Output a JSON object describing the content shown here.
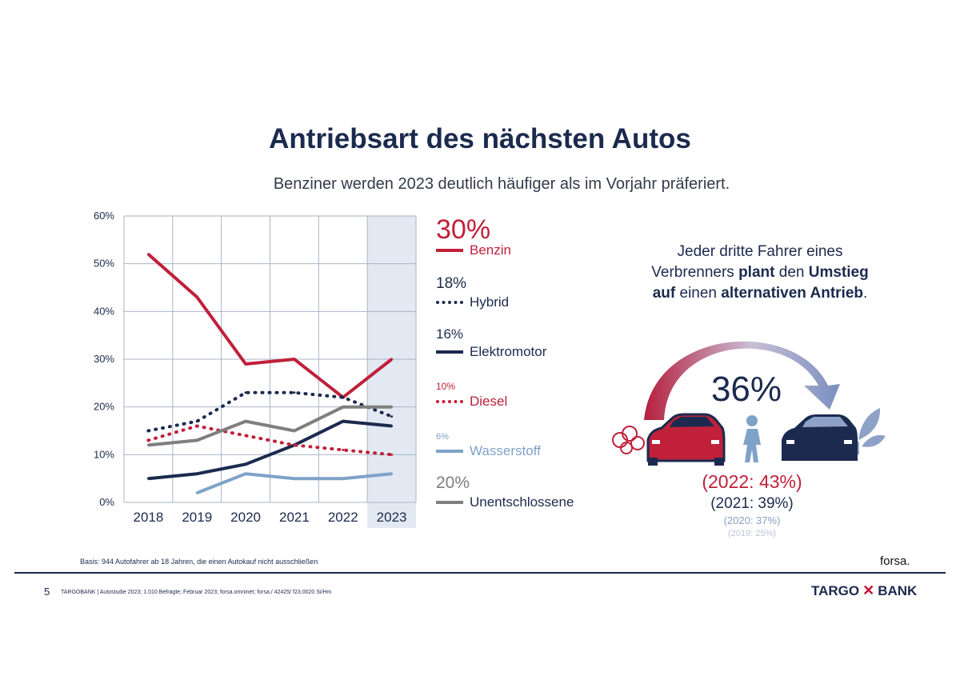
{
  "title": "Antriebsart des nächsten Autos",
  "subtitle": "Benziner werden 2023 deutlich häufiger als im Vorjahr präferiert.",
  "colors": {
    "navy": "#1b2a4e",
    "red": "#c0203a",
    "gray": "#7f7f7f",
    "lightblue": "#7fa2c8",
    "highlight": "#e3e9f2"
  },
  "chart_data": {
    "type": "line",
    "title": "",
    "xlabel": "",
    "ylabel": "",
    "categories": [
      "2018",
      "2019",
      "2020",
      "2021",
      "2022",
      "2023"
    ],
    "yticks": [
      "0%",
      "10%",
      "20%",
      "30%",
      "40%",
      "50%",
      "60%"
    ],
    "ylim": [
      0,
      60
    ],
    "grid": true,
    "highlight_category": "2023",
    "series": [
      {
        "name": "Benzin",
        "style": "solid",
        "color": "#c0203a",
        "values": [
          52,
          43,
          29,
          30,
          22,
          30
        ]
      },
      {
        "name": "Hybrid",
        "style": "dotted",
        "color": "#1b2a4e",
        "values": [
          15,
          17,
          23,
          23,
          22,
          18
        ]
      },
      {
        "name": "Elektromotor",
        "style": "solid",
        "color": "#1b2a4e",
        "values": [
          5,
          6,
          8,
          12,
          17,
          16
        ]
      },
      {
        "name": "Diesel",
        "style": "dotted",
        "color": "#c0203a",
        "values": [
          13,
          16,
          14,
          12,
          11,
          10
        ]
      },
      {
        "name": "Wasserstoff",
        "style": "solid",
        "color": "#7fa2c8",
        "values": [
          null,
          2,
          6,
          5,
          5,
          6
        ]
      },
      {
        "name": "Unentschlossene",
        "style": "solid",
        "color": "#7f7f7f",
        "values": [
          12,
          13,
          17,
          15,
          20,
          20
        ]
      }
    ]
  },
  "legend": [
    {
      "pct": "30%",
      "name": "Benzin"
    },
    {
      "pct": "18%",
      "name": "Hybrid"
    },
    {
      "pct": "16%",
      "name": "Elektromotor"
    },
    {
      "pct": "10%",
      "name": "Diesel"
    },
    {
      "pct": "6%",
      "name": "Wasserstoff"
    },
    {
      "pct": "20%",
      "name": "Unentschlossene"
    }
  ],
  "note": {
    "line1": "Jeder dritte Fahrer eines",
    "line2_a": "Verbrenners ",
    "line2_b": "plant",
    "line2_c": " den ",
    "line2_d": "Umstieg",
    "line3_a": "auf",
    "line3_b": " einen ",
    "line3_c": "alternativen Antrieb",
    "line3_d": "."
  },
  "switch_share": "36%",
  "history": [
    "(2022: 43%)",
    "(2021: 39%)",
    "(2020: 37%)",
    "(2019: 25%)"
  ],
  "basis": "Basis: 944 Autofahrer ab 18 Jahren, die einen Autokauf nicht ausschließen",
  "forsa": "forsa.",
  "page_number": "5",
  "footer": "TARGOBANK | Autostudie 2023; 1.010 Befragte; Februar 2023; forsa.omninet; forsa./ 42425/ f23.0020 Si/Hm",
  "brand": {
    "left": "TARGO",
    "sep": "✕",
    "right": "BANK"
  }
}
